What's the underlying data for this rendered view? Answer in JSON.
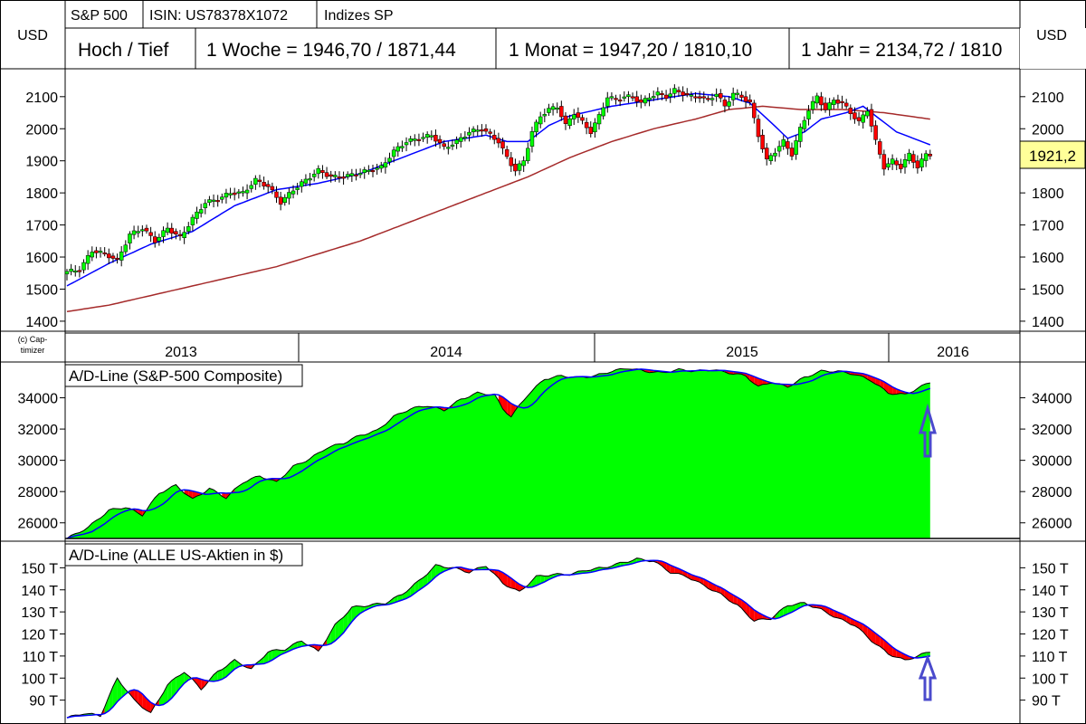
{
  "header": {
    "left_currency": "USD",
    "right_currency": "USD",
    "tabs": [
      "S&P 500",
      "ISIN: US78378X1072",
      "Indizes SP"
    ],
    "hl_label": "Hoch / Tief",
    "week": "1 Woche = 1946,70 / 1871,44",
    "month": "1 Monat = 1947,20 / 1810,10",
    "year": "1 Jahr = 2134,72 / 1810"
  },
  "copyright": [
    "(c) Cap-",
    "timizer"
  ],
  "current_price": "1921,2",
  "colors": {
    "up": "#00ff00",
    "down": "#ff0000",
    "ma_short": "#0000ff",
    "ma_long": "#a52a2a",
    "ad_fill": "#00ff00",
    "arrow": "#4a4acc",
    "price_box": "#ffff99"
  },
  "chart_data": [
    {
      "type": "candlestick",
      "title": "S&P 500",
      "unit": "USD",
      "ylim": [
        1380,
        2170
      ],
      "y_ticks": [
        1400,
        1500,
        1600,
        1700,
        1800,
        1900,
        2000,
        2100
      ],
      "x_labels": [
        "2013",
        "2014",
        "2015",
        "2016"
      ],
      "last": 1921.2,
      "close_anchors": [
        [
          0,
          1555
        ],
        [
          3,
          1560
        ],
        [
          6,
          1620
        ],
        [
          9,
          1610
        ],
        [
          12,
          1590
        ],
        [
          15,
          1670
        ],
        [
          18,
          1690
        ],
        [
          21,
          1650
        ],
        [
          24,
          1690
        ],
        [
          27,
          1660
        ],
        [
          30,
          1720
        ],
        [
          33,
          1770
        ],
        [
          36,
          1780
        ],
        [
          39,
          1800
        ],
        [
          42,
          1800
        ],
        [
          45,
          1840
        ],
        [
          48,
          1820
        ],
        [
          51,
          1770
        ],
        [
          54,
          1810
        ],
        [
          57,
          1840
        ],
        [
          60,
          1870
        ],
        [
          63,
          1850
        ],
        [
          66,
          1850
        ],
        [
          69,
          1860
        ],
        [
          72,
          1870
        ],
        [
          75,
          1880
        ],
        [
          78,
          1930
        ],
        [
          81,
          1960
        ],
        [
          84,
          1970
        ],
        [
          87,
          1980
        ],
        [
          90,
          1940
        ],
        [
          93,
          1960
        ],
        [
          96,
          1990
        ],
        [
          99,
          2000
        ],
        [
          101,
          1980
        ],
        [
          103,
          1960
        ],
        [
          105,
          1910
        ],
        [
          107,
          1870
        ],
        [
          109,
          1900
        ],
        [
          111,
          1990
        ],
        [
          113,
          2040
        ],
        [
          115,
          2060
        ],
        [
          117,
          2070
        ],
        [
          119,
          2010
        ],
        [
          121,
          2050
        ],
        [
          123,
          2020
        ],
        [
          125,
          1990
        ],
        [
          127,
          2040
        ],
        [
          129,
          2100
        ],
        [
          131,
          2090
        ],
        [
          133,
          2100
        ],
        [
          135,
          2100
        ],
        [
          137,
          2080
        ],
        [
          139,
          2100
        ],
        [
          141,
          2110
        ],
        [
          143,
          2100
        ],
        [
          145,
          2120
        ],
        [
          147,
          2110
        ],
        [
          149,
          2100
        ],
        [
          151,
          2100
        ],
        [
          153,
          2090
        ],
        [
          155,
          2110
        ],
        [
          157,
          2070
        ],
        [
          159,
          2110
        ],
        [
          161,
          2100
        ],
        [
          163,
          2080
        ],
        [
          165,
          1980
        ],
        [
          167,
          1900
        ],
        [
          169,
          1930
        ],
        [
          171,
          1960
        ],
        [
          173,
          1920
        ],
        [
          175,
          2000
        ],
        [
          177,
          2060
        ],
        [
          179,
          2100
        ],
        [
          181,
          2060
        ],
        [
          183,
          2090
        ],
        [
          185,
          2080
        ],
        [
          187,
          2050
        ],
        [
          189,
          2020
        ],
        [
          191,
          2060
        ],
        [
          193,
          1960
        ],
        [
          195,
          1880
        ],
        [
          197,
          1900
        ],
        [
          199,
          1880
        ],
        [
          201,
          1920
        ],
        [
          203,
          1880
        ],
        [
          205,
          1921
        ]
      ],
      "ma_short_anchors": [
        [
          0,
          1510
        ],
        [
          10,
          1580
        ],
        [
          20,
          1640
        ],
        [
          30,
          1680
        ],
        [
          40,
          1760
        ],
        [
          50,
          1810
        ],
        [
          60,
          1830
        ],
        [
          70,
          1860
        ],
        [
          80,
          1910
        ],
        [
          90,
          1960
        ],
        [
          100,
          1980
        ],
        [
          105,
          1960
        ],
        [
          110,
          1960
        ],
        [
          115,
          2010
        ],
        [
          120,
          2040
        ],
        [
          130,
          2070
        ],
        [
          140,
          2090
        ],
        [
          150,
          2110
        ],
        [
          158,
          2100
        ],
        [
          163,
          2080
        ],
        [
          168,
          2020
        ],
        [
          172,
          1970
        ],
        [
          176,
          1990
        ],
        [
          180,
          2030
        ],
        [
          186,
          2050
        ],
        [
          190,
          2070
        ],
        [
          194,
          2030
        ],
        [
          198,
          1990
        ],
        [
          202,
          1970
        ],
        [
          206,
          1950
        ]
      ],
      "ma_long_anchors": [
        [
          0,
          1430
        ],
        [
          10,
          1450
        ],
        [
          20,
          1480
        ],
        [
          30,
          1510
        ],
        [
          40,
          1540
        ],
        [
          50,
          1570
        ],
        [
          60,
          1610
        ],
        [
          70,
          1650
        ],
        [
          80,
          1700
        ],
        [
          90,
          1750
        ],
        [
          100,
          1800
        ],
        [
          110,
          1850
        ],
        [
          120,
          1910
        ],
        [
          130,
          1960
        ],
        [
          140,
          2000
        ],
        [
          150,
          2030
        ],
        [
          158,
          2060
        ],
        [
          166,
          2070
        ],
        [
          175,
          2060
        ],
        [
          185,
          2060
        ],
        [
          195,
          2050
        ],
        [
          206,
          2030
        ]
      ]
    },
    {
      "type": "area",
      "title": "A/D-Line (S&P-500 Composite)",
      "ylim": [
        25000,
        36000
      ],
      "y_ticks": [
        26000,
        28000,
        30000,
        32000,
        34000
      ],
      "y_tick_labels": [
        "26000",
        "28000",
        "30000",
        "32000",
        "34000"
      ],
      "anchors": [
        [
          0,
          25000
        ],
        [
          5,
          25700
        ],
        [
          10,
          26800
        ],
        [
          14,
          27000
        ],
        [
          18,
          26500
        ],
        [
          22,
          27900
        ],
        [
          26,
          28400
        ],
        [
          30,
          27500
        ],
        [
          34,
          28200
        ],
        [
          38,
          27600
        ],
        [
          42,
          28600
        ],
        [
          46,
          29000
        ],
        [
          50,
          28600
        ],
        [
          54,
          29600
        ],
        [
          58,
          30100
        ],
        [
          62,
          30800
        ],
        [
          66,
          31100
        ],
        [
          70,
          31600
        ],
        [
          74,
          31900
        ],
        [
          78,
          32800
        ],
        [
          82,
          33300
        ],
        [
          86,
          33500
        ],
        [
          90,
          33200
        ],
        [
          94,
          33900
        ],
        [
          98,
          34300
        ],
        [
          102,
          34200
        ],
        [
          104,
          33300
        ],
        [
          106,
          32800
        ],
        [
          110,
          34200
        ],
        [
          114,
          35200
        ],
        [
          118,
          35400
        ],
        [
          122,
          35300
        ],
        [
          126,
          35400
        ],
        [
          130,
          35700
        ],
        [
          134,
          35900
        ],
        [
          138,
          35700
        ],
        [
          142,
          35600
        ],
        [
          146,
          35800
        ],
        [
          150,
          35700
        ],
        [
          154,
          35800
        ],
        [
          158,
          35600
        ],
        [
          162,
          35400
        ],
        [
          165,
          34700
        ],
        [
          168,
          35000
        ],
        [
          172,
          34700
        ],
        [
          176,
          35300
        ],
        [
          180,
          35700
        ],
        [
          184,
          35700
        ],
        [
          188,
          35500
        ],
        [
          192,
          35100
        ],
        [
          196,
          34300
        ],
        [
          200,
          34200
        ],
        [
          203,
          34600
        ],
        [
          206,
          35000
        ]
      ]
    },
    {
      "type": "area",
      "title": "A/D-Line (ALLE US-Aktien in $)",
      "ylim": [
        80,
        160
      ],
      "y_ticks": [
        90,
        100,
        110,
        120,
        130,
        140,
        150
      ],
      "y_tick_labels": [
        "90 T",
        "100 T",
        "110 T",
        "120 T",
        "130 T",
        "140 T",
        "150 T"
      ],
      "anchors": [
        [
          0,
          82
        ],
        [
          4,
          84
        ],
        [
          8,
          83
        ],
        [
          12,
          100
        ],
        [
          16,
          90
        ],
        [
          20,
          84
        ],
        [
          24,
          97
        ],
        [
          28,
          103
        ],
        [
          32,
          95
        ],
        [
          36,
          103
        ],
        [
          40,
          108
        ],
        [
          44,
          104
        ],
        [
          48,
          112
        ],
        [
          52,
          113
        ],
        [
          56,
          117
        ],
        [
          60,
          112
        ],
        [
          64,
          124
        ],
        [
          68,
          132
        ],
        [
          72,
          133
        ],
        [
          76,
          134
        ],
        [
          80,
          138
        ],
        [
          84,
          144
        ],
        [
          88,
          151
        ],
        [
          92,
          150
        ],
        [
          96,
          148
        ],
        [
          100,
          151
        ],
        [
          104,
          143
        ],
        [
          108,
          139
        ],
        [
          112,
          146
        ],
        [
          116,
          147
        ],
        [
          120,
          147
        ],
        [
          124,
          149
        ],
        [
          128,
          150
        ],
        [
          132,
          152
        ],
        [
          136,
          154
        ],
        [
          140,
          153
        ],
        [
          144,
          148
        ],
        [
          148,
          146
        ],
        [
          152,
          142
        ],
        [
          156,
          138
        ],
        [
          160,
          133
        ],
        [
          164,
          126
        ],
        [
          168,
          127
        ],
        [
          172,
          133
        ],
        [
          176,
          134
        ],
        [
          180,
          131
        ],
        [
          184,
          127
        ],
        [
          188,
          124
        ],
        [
          192,
          117
        ],
        [
          196,
          111
        ],
        [
          200,
          108
        ],
        [
          203,
          110
        ],
        [
          206,
          112
        ]
      ]
    }
  ]
}
